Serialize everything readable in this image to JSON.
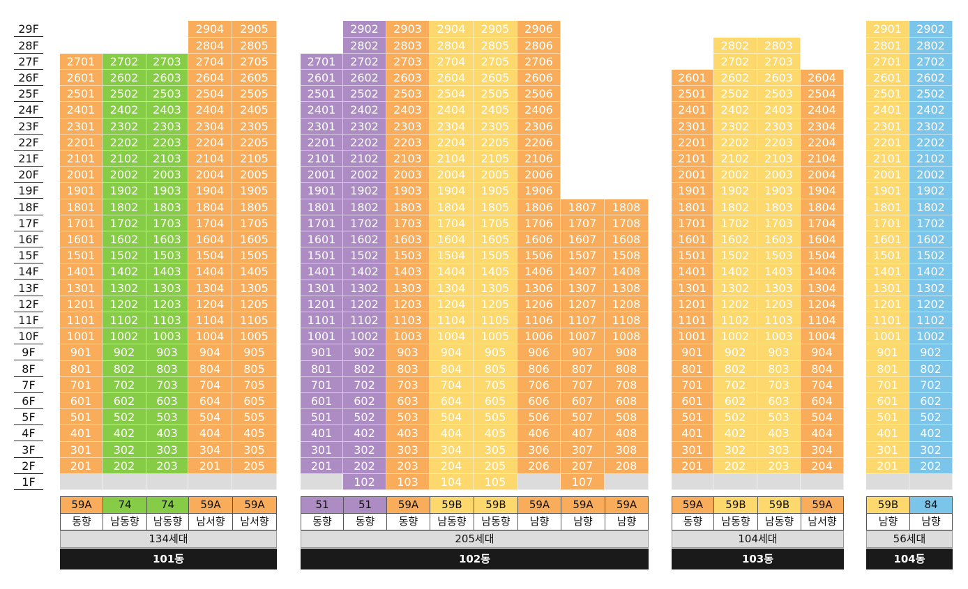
{
  "floors": [
    "29F",
    "28F",
    "27F",
    "26F",
    "25F",
    "24F",
    "23F",
    "22F",
    "21F",
    "20F",
    "19F",
    "18F",
    "17F",
    "16F",
    "15F",
    "14F",
    "13F",
    "12F",
    "11F",
    "10F",
    "9F",
    "8F",
    "7F",
    "6F",
    "5F",
    "4F",
    "3F",
    "2F",
    "1F"
  ],
  "colors": {
    "59A": "#f9ad5a",
    "59B": "#fdd86c",
    "74": "#86cc46",
    "51": "#ad8cc4",
    "84": "#7cc5ea",
    "empty": "#dcdcdc",
    "name_bg": "#1a1a1a"
  },
  "buildings": [
    {
      "name": "101동",
      "households": "134세대",
      "columns": [
        {
          "type": "59A",
          "dir": "동향",
          "top": 27,
          "ground": "",
          "high": {
            "2": "201"
          }
        },
        {
          "type": "74",
          "dir": "남동향",
          "top": 27,
          "ground": "",
          "high": {}
        },
        {
          "type": "74",
          "dir": "남동향",
          "top": 27,
          "ground": "",
          "high": {}
        },
        {
          "type": "59A",
          "dir": "남서향",
          "top": 29,
          "ground": "",
          "high": {
            "2": "201"
          },
          "skip": [
            28
          ],
          "extra": {
            "28": "2804"
          }
        },
        {
          "type": "59A",
          "dir": "남서향",
          "top": 29,
          "ground": "",
          "high": {}
        }
      ]
    },
    {
      "name": "102동",
      "households": "205세대",
      "columns": [
        {
          "type": "51",
          "dir": "동향",
          "top": 27,
          "ground": ""
        },
        {
          "type": "51",
          "dir": "동향",
          "top": 29,
          "ground": "102"
        },
        {
          "type": "59A",
          "dir": "동향",
          "top": 29,
          "ground": "103"
        },
        {
          "type": "59B",
          "dir": "남동향",
          "top": 29,
          "ground": "104"
        },
        {
          "type": "59B",
          "dir": "남동향",
          "top": 29,
          "ground": "105"
        },
        {
          "type": "59A",
          "dir": "남향",
          "top": 29,
          "ground": ""
        },
        {
          "type": "59A",
          "dir": "남향",
          "top": 18,
          "ground": "107"
        },
        {
          "type": "59A",
          "dir": "남향",
          "top": 18,
          "ground": ""
        }
      ]
    },
    {
      "name": "103동",
      "households": "104세대",
      "columns": [
        {
          "type": "59A",
          "dir": "동향",
          "top": 26,
          "ground": ""
        },
        {
          "type": "59B",
          "dir": "남동향",
          "top": 28,
          "ground": ""
        },
        {
          "type": "59B",
          "dir": "남동향",
          "top": 28,
          "ground": ""
        },
        {
          "type": "59A",
          "dir": "남서향",
          "top": 26,
          "ground": ""
        }
      ]
    },
    {
      "name": "104동",
      "households": "56세대",
      "columns": [
        {
          "type": "59B",
          "dir": "남향",
          "top": 29,
          "ground": ""
        },
        {
          "type": "84",
          "dir": "남향",
          "top": 29,
          "ground": ""
        }
      ]
    }
  ],
  "info_rows": {
    "building_101": {
      "types": [
        "59A",
        "74",
        "74",
        "59A",
        "59A"
      ],
      "dirs": [
        "동향",
        "남동향",
        "남동향",
        "남서향",
        "남서향"
      ]
    },
    "building_102": {
      "types": [
        "51",
        "51",
        "59A",
        "59B",
        "59B",
        "59A",
        "59A",
        "59A"
      ],
      "dirs": [
        "동향",
        "동향",
        "동향",
        "남동향",
        "남동향",
        "남향",
        "남향",
        "남향"
      ]
    },
    "building_103": {
      "types": [
        "59A",
        "59B",
        "59B",
        "59A"
      ],
      "dirs": [
        "동향",
        "남동향",
        "남동향",
        "남서향"
      ]
    },
    "building_104": {
      "types": [
        "59B",
        "84"
      ],
      "dirs": [
        "남향",
        "남향"
      ]
    }
  }
}
